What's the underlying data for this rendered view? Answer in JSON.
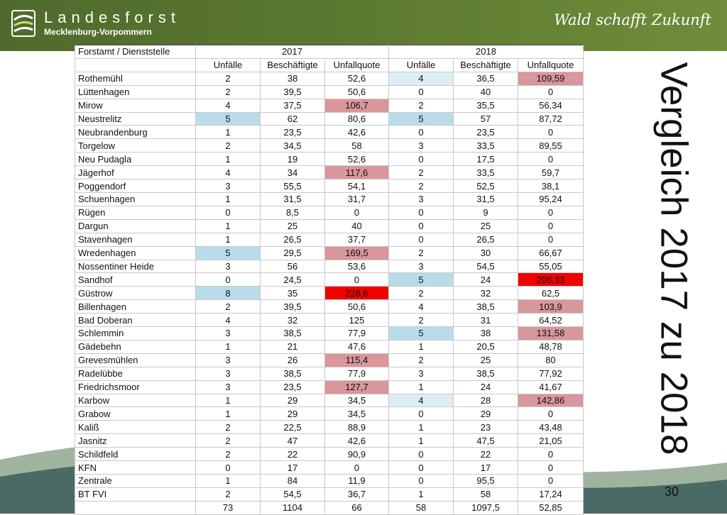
{
  "header": {
    "brand": "Landesforst",
    "brand_sub": "Mecklenburg-Vorpommern",
    "slogan": "Wald schafft Zukunft"
  },
  "colors": {
    "header_green": "#5b7830",
    "light_blue": "#b9dcea",
    "pale_blue": "#dbeef5",
    "pink": "#d9969b",
    "red": "#f20000"
  },
  "slide": {
    "title": "Vergleich 2017 zu 2018",
    "page_number": "30"
  },
  "table": {
    "label_header": "Forstamt / Dienststelle",
    "year_1": "2017",
    "year_2": "2018",
    "col_headers": [
      "Unfälle",
      "Beschäftigte",
      "Unfallquote",
      "Unfälle",
      "Beschäftigte",
      "Unfallquote"
    ],
    "rows": [
      {
        "name": "Rothemühl",
        "v": [
          "2",
          "38",
          "52,6",
          "4",
          "36,5",
          "109,59"
        ],
        "h": [
          null,
          null,
          null,
          "llb",
          null,
          "pk"
        ]
      },
      {
        "name": "Lüttenhagen",
        "v": [
          "2",
          "39,5",
          "50,6",
          "0",
          "40",
          "0"
        ],
        "h": [
          null,
          null,
          null,
          null,
          null,
          null
        ]
      },
      {
        "name": "Mirow",
        "v": [
          "4",
          "37,5",
          "106,7",
          "2",
          "35,5",
          "56,34"
        ],
        "h": [
          null,
          null,
          "pk",
          null,
          null,
          null
        ]
      },
      {
        "name": "Neustrelitz",
        "v": [
          "5",
          "62",
          "80,6",
          "5",
          "57",
          "87,72"
        ],
        "h": [
          "lb",
          null,
          null,
          "lb",
          null,
          null
        ]
      },
      {
        "name": "Neubrandenburg",
        "v": [
          "1",
          "23,5",
          "42,6",
          "0",
          "23,5",
          "0"
        ],
        "h": [
          null,
          null,
          null,
          null,
          null,
          null
        ]
      },
      {
        "name": "Torgelow",
        "v": [
          "2",
          "34,5",
          "58",
          "3",
          "33,5",
          "89,55"
        ],
        "h": [
          null,
          null,
          null,
          null,
          null,
          null
        ]
      },
      {
        "name": "Neu Pudagla",
        "v": [
          "1",
          "19",
          "52,6",
          "0",
          "17,5",
          "0"
        ],
        "h": [
          null,
          null,
          null,
          null,
          null,
          null
        ]
      },
      {
        "name": "Jägerhof",
        "v": [
          "4",
          "34",
          "117,6",
          "2",
          "33,5",
          "59,7"
        ],
        "h": [
          null,
          null,
          "pk",
          null,
          null,
          null
        ]
      },
      {
        "name": "Poggendorf",
        "v": [
          "3",
          "55,5",
          "54,1",
          "2",
          "52,5",
          "38,1"
        ],
        "h": [
          null,
          null,
          null,
          null,
          null,
          null
        ]
      },
      {
        "name": "Schuenhagen",
        "v": [
          "1",
          "31,5",
          "31,7",
          "3",
          "31,5",
          "95,24"
        ],
        "h": [
          null,
          null,
          null,
          null,
          null,
          null
        ]
      },
      {
        "name": "Rügen",
        "v": [
          "0",
          "8,5",
          "0",
          "0",
          "9",
          "0"
        ],
        "h": [
          null,
          null,
          null,
          null,
          null,
          null
        ]
      },
      {
        "name": "Dargun",
        "v": [
          "1",
          "25",
          "40",
          "0",
          "25",
          "0"
        ],
        "h": [
          null,
          null,
          null,
          null,
          null,
          null
        ]
      },
      {
        "name": "Stavenhagen",
        "v": [
          "1",
          "26,5",
          "37,7",
          "0",
          "26,5",
          "0"
        ],
        "h": [
          null,
          null,
          null,
          null,
          null,
          null
        ]
      },
      {
        "name": "Wredenhagen",
        "v": [
          "5",
          "29,5",
          "169,5",
          "2",
          "30",
          "66,67"
        ],
        "h": [
          "lb",
          null,
          "pk",
          null,
          null,
          null
        ]
      },
      {
        "name": "Nossentiner Heide",
        "v": [
          "3",
          "56",
          "53,6",
          "3",
          "54,5",
          "55,05"
        ],
        "h": [
          null,
          null,
          null,
          null,
          null,
          null
        ]
      },
      {
        "name": "Sandhof",
        "v": [
          "0",
          "24,5",
          "0",
          "5",
          "24",
          "208,33"
        ],
        "h": [
          null,
          null,
          null,
          "lb",
          null,
          "rd"
        ]
      },
      {
        "name": "Güstrow",
        "v": [
          "8",
          "35",
          "228,6",
          "2",
          "32",
          "62,5"
        ],
        "h": [
          "lb",
          null,
          "rd",
          null,
          null,
          null
        ]
      },
      {
        "name": "Billenhagen",
        "v": [
          "2",
          "39,5",
          "50,6",
          "4",
          "38,5",
          "103,9"
        ],
        "h": [
          null,
          null,
          null,
          null,
          null,
          "pk"
        ]
      },
      {
        "name": "Bad Doberan",
        "v": [
          "4",
          "32",
          "125",
          "2",
          "31",
          "64,52"
        ],
        "h": [
          null,
          null,
          null,
          null,
          null,
          null
        ]
      },
      {
        "name": "Schlemmin",
        "v": [
          "3",
          "38,5",
          "77,9",
          "5",
          "38",
          "131,58"
        ],
        "h": [
          null,
          null,
          null,
          "lb",
          null,
          "pk"
        ]
      },
      {
        "name": "Gädebehn",
        "v": [
          "1",
          "21",
          "47,6",
          "1",
          "20,5",
          "48,78"
        ],
        "h": [
          null,
          null,
          null,
          null,
          null,
          null
        ]
      },
      {
        "name": "Grevesmühlen",
        "v": [
          "3",
          "26",
          "115,4",
          "2",
          "25",
          "80"
        ],
        "h": [
          null,
          null,
          "pk",
          null,
          null,
          null
        ]
      },
      {
        "name": "Radelübbe",
        "v": [
          "3",
          "38,5",
          "77,9",
          "3",
          "38,5",
          "77,92"
        ],
        "h": [
          null,
          null,
          null,
          null,
          null,
          null
        ]
      },
      {
        "name": "Friedrichsmoor",
        "v": [
          "3",
          "23,5",
          "127,7",
          "1",
          "24",
          "41,67"
        ],
        "h": [
          null,
          null,
          "pk",
          null,
          null,
          null
        ]
      },
      {
        "name": "Karbow",
        "v": [
          "1",
          "29",
          "34,5",
          "4",
          "28",
          "142,86"
        ],
        "h": [
          null,
          null,
          null,
          "llb",
          null,
          "pk"
        ]
      },
      {
        "name": "Grabow",
        "v": [
          "1",
          "29",
          "34,5",
          "0",
          "29",
          "0"
        ],
        "h": [
          null,
          null,
          null,
          null,
          null,
          null
        ]
      },
      {
        "name": "Kaliß",
        "v": [
          "2",
          "22,5",
          "88,9",
          "1",
          "23",
          "43,48"
        ],
        "h": [
          null,
          null,
          null,
          null,
          null,
          null
        ]
      },
      {
        "name": "Jasnitz",
        "v": [
          "2",
          "47",
          "42,6",
          "1",
          "47,5",
          "21,05"
        ],
        "h": [
          null,
          null,
          null,
          null,
          null,
          null
        ]
      },
      {
        "name": "Schildfeld",
        "v": [
          "2",
          "22",
          "90,9",
          "0",
          "22",
          "0"
        ],
        "h": [
          null,
          null,
          null,
          null,
          null,
          null
        ]
      },
      {
        "name": "KFN",
        "v": [
          "0",
          "17",
          "0",
          "0",
          "17",
          "0"
        ],
        "h": [
          null,
          null,
          null,
          null,
          null,
          null
        ]
      },
      {
        "name": "Zentrale",
        "v": [
          "1",
          "84",
          "11,9",
          "0",
          "95,5",
          "0"
        ],
        "h": [
          null,
          null,
          null,
          null,
          null,
          null
        ]
      },
      {
        "name": "BT FVI",
        "v": [
          "2",
          "54,5",
          "36,7",
          "1",
          "58",
          "17,24"
        ],
        "h": [
          null,
          null,
          null,
          null,
          null,
          null
        ]
      }
    ],
    "totals": [
      "73",
      "1104",
      "66",
      "58",
      "1097,5",
      "52,85"
    ]
  }
}
